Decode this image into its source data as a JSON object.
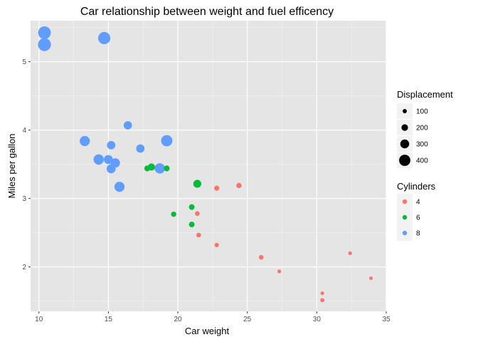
{
  "chart_data": {
    "type": "scatter",
    "title": "Car relationship between weight and fuel efficency",
    "xlabel": "Car weight",
    "ylabel": "Miles per gallon",
    "xlim": [
      9.4,
      35.0
    ],
    "ylim": [
      1.35,
      5.6
    ],
    "x_ticks": [
      10,
      15,
      20,
      25,
      30,
      35
    ],
    "y_ticks": [
      2,
      3,
      4,
      5
    ],
    "grid": true,
    "background": "#e5e5e5",
    "size_legend": {
      "title": "Displacement",
      "entries": [
        {
          "label": "100",
          "value": 100
        },
        {
          "label": "200",
          "value": 200
        },
        {
          "label": "300",
          "value": 300
        },
        {
          "label": "400",
          "value": 400
        }
      ]
    },
    "color_legend": {
      "title": "Cylinders",
      "entries": [
        {
          "label": "4",
          "color": "#F8766D"
        },
        {
          "label": "6",
          "color": "#00BA38"
        },
        {
          "label": "8",
          "color": "#619CFF"
        }
      ]
    },
    "points": [
      {
        "x": 21.0,
        "y": 2.62,
        "cyl": "6",
        "disp": 160
      },
      {
        "x": 21.0,
        "y": 2.875,
        "cyl": "6",
        "disp": 160
      },
      {
        "x": 22.8,
        "y": 2.32,
        "cyl": "4",
        "disp": 108
      },
      {
        "x": 21.4,
        "y": 3.215,
        "cyl": "6",
        "disp": 258
      },
      {
        "x": 18.7,
        "y": 3.44,
        "cyl": "8",
        "disp": 360
      },
      {
        "x": 18.1,
        "y": 3.46,
        "cyl": "6",
        "disp": 225
      },
      {
        "x": 14.3,
        "y": 3.57,
        "cyl": "8",
        "disp": 360
      },
      {
        "x": 24.4,
        "y": 3.19,
        "cyl": "4",
        "disp": 146.7
      },
      {
        "x": 22.8,
        "y": 3.15,
        "cyl": "4",
        "disp": 140.8
      },
      {
        "x": 19.2,
        "y": 3.44,
        "cyl": "6",
        "disp": 167.6
      },
      {
        "x": 17.8,
        "y": 3.44,
        "cyl": "6",
        "disp": 167.6
      },
      {
        "x": 16.4,
        "y": 4.07,
        "cyl": "8",
        "disp": 275.8
      },
      {
        "x": 17.3,
        "y": 3.73,
        "cyl": "8",
        "disp": 275.8
      },
      {
        "x": 15.2,
        "y": 3.78,
        "cyl": "8",
        "disp": 275.8
      },
      {
        "x": 10.4,
        "y": 5.25,
        "cyl": "8",
        "disp": 472
      },
      {
        "x": 10.4,
        "y": 5.424,
        "cyl": "8",
        "disp": 460
      },
      {
        "x": 14.7,
        "y": 5.345,
        "cyl": "8",
        "disp": 440
      },
      {
        "x": 32.4,
        "y": 2.2,
        "cyl": "4",
        "disp": 78.7
      },
      {
        "x": 30.4,
        "y": 1.615,
        "cyl": "4",
        "disp": 75.7
      },
      {
        "x": 33.9,
        "y": 1.835,
        "cyl": "4",
        "disp": 71.1
      },
      {
        "x": 21.5,
        "y": 2.465,
        "cyl": "4",
        "disp": 120.1
      },
      {
        "x": 15.5,
        "y": 3.52,
        "cyl": "8",
        "disp": 318
      },
      {
        "x": 15.2,
        "y": 3.435,
        "cyl": "8",
        "disp": 304
      },
      {
        "x": 13.3,
        "y": 3.84,
        "cyl": "8",
        "disp": 350
      },
      {
        "x": 19.2,
        "y": 3.845,
        "cyl": "8",
        "disp": 400
      },
      {
        "x": 27.3,
        "y": 1.935,
        "cyl": "4",
        "disp": 79
      },
      {
        "x": 26.0,
        "y": 2.14,
        "cyl": "4",
        "disp": 120.3
      },
      {
        "x": 30.4,
        "y": 1.513,
        "cyl": "4",
        "disp": 95.1
      },
      {
        "x": 15.8,
        "y": 3.17,
        "cyl": "8",
        "disp": 351
      },
      {
        "x": 19.7,
        "y": 2.77,
        "cyl": "6",
        "disp": 145
      },
      {
        "x": 15.0,
        "y": 3.57,
        "cyl": "8",
        "disp": 301
      },
      {
        "x": 21.4,
        "y": 2.78,
        "cyl": "4",
        "disp": 121
      }
    ]
  }
}
